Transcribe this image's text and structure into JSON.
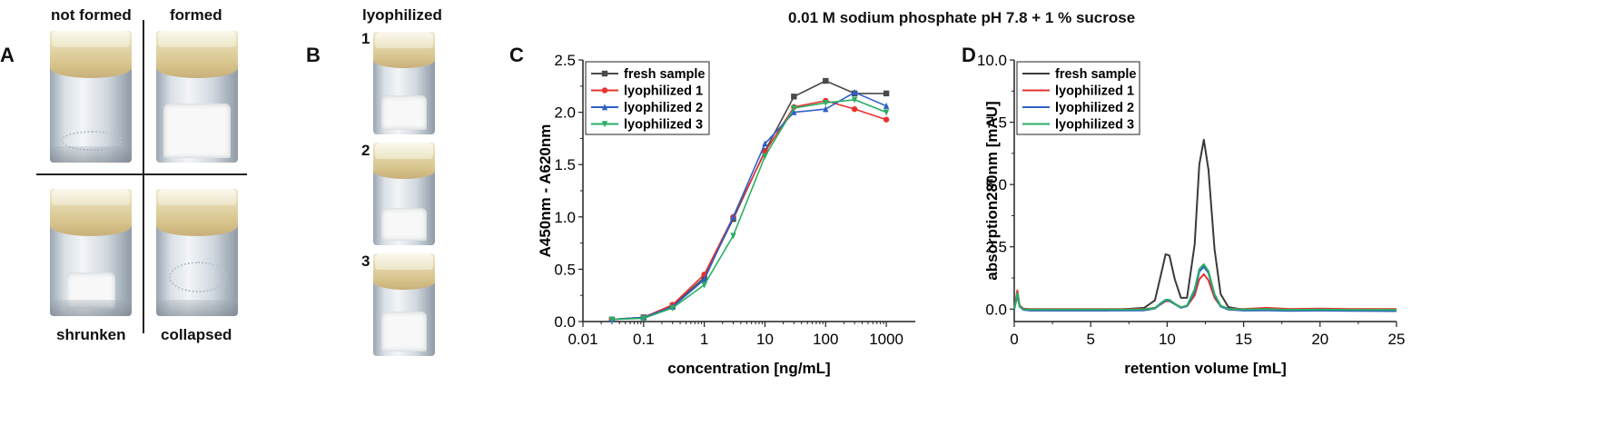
{
  "figure_title": "0.01 M sodium phosphate pH 7.8 + 1 % sucrose",
  "panel_a": {
    "letter": "A",
    "labels": {
      "top_left": "not formed",
      "top_right": "formed",
      "bottom_left": "shrunken",
      "bottom_right": "collapsed"
    }
  },
  "panel_b": {
    "letter": "B",
    "title": "lyophilized",
    "items": [
      "1",
      "2",
      "3"
    ]
  },
  "chart_data": [
    {
      "panel": "C",
      "type": "line",
      "xscale": "log",
      "xlabel": "concentration [ng/mL]",
      "ylabel": "A450nm - A620nm",
      "xlim": [
        0.01,
        3000
      ],
      "ylim": [
        0,
        2.5
      ],
      "xticks": [
        "0.01",
        "0.1",
        "1",
        "10",
        "100",
        "1000"
      ],
      "yticks": [
        "0.0",
        "0.5",
        "1.0",
        "1.5",
        "2.0",
        "2.5"
      ],
      "legend_position": "top-left",
      "x": [
        0.03,
        0.1,
        0.3,
        1,
        3,
        10,
        30,
        100,
        300,
        1000
      ],
      "series": [
        {
          "name": "fresh sample",
          "color": "#4a4a4a",
          "marker": "square",
          "values": [
            0.02,
            0.04,
            0.15,
            0.42,
            0.98,
            1.63,
            2.15,
            2.3,
            2.18,
            2.18
          ]
        },
        {
          "name": "lyophilized 1",
          "color": "#e8322e",
          "marker": "circle",
          "values": [
            0.02,
            0.04,
            0.16,
            0.45,
            1.0,
            1.62,
            2.05,
            2.11,
            2.03,
            1.93
          ]
        },
        {
          "name": "lyophilized 2",
          "color": "#2f60c8",
          "marker": "triangle-up",
          "values": [
            0.02,
            0.04,
            0.14,
            0.4,
            1.0,
            1.7,
            2.0,
            2.03,
            2.19,
            2.06
          ]
        },
        {
          "name": "lyophilized 3",
          "color": "#2aae64",
          "marker": "triangle-down",
          "values": [
            0.02,
            0.03,
            0.13,
            0.35,
            0.82,
            1.58,
            2.04,
            2.09,
            2.12,
            2.0
          ]
        }
      ]
    },
    {
      "panel": "D",
      "type": "line",
      "xlabel": "retention volume [mL]",
      "ylabel": "absorption280nm [mAU]",
      "xlim": [
        0,
        25
      ],
      "ylim": [
        -0.5,
        10
      ],
      "xticks": [
        "0",
        "5",
        "10",
        "15",
        "20",
        "25"
      ],
      "yticks": [
        "0.0",
        "2.5",
        "5.0",
        "7.5",
        "10.0"
      ],
      "legend_position": "top-left",
      "x": [
        0,
        0.2,
        0.35,
        0.6,
        1,
        3,
        6,
        8.5,
        9.2,
        9.6,
        9.9,
        10.15,
        10.5,
        10.9,
        11.3,
        11.8,
        12.1,
        12.4,
        12.7,
        13.1,
        13.5,
        14,
        15,
        16.5,
        18,
        20,
        22,
        25
      ],
      "series": [
        {
          "name": "fresh sample",
          "color": "#3a3a3a",
          "values": [
            0,
            0.55,
            0.12,
            0.0,
            -0.05,
            -0.05,
            -0.05,
            0.05,
            0.35,
            1.4,
            2.2,
            2.15,
            1.2,
            0.45,
            0.45,
            2.6,
            5.8,
            6.8,
            5.6,
            2.4,
            0.6,
            0.08,
            -0.02,
            0.0,
            -0.05,
            -0.05,
            -0.05,
            -0.08
          ]
        },
        {
          "name": "lyophilized 1",
          "color": "#e8322e",
          "values": [
            0,
            0.75,
            0.15,
            0.02,
            0.0,
            0.0,
            0.0,
            0.0,
            0.05,
            0.2,
            0.32,
            0.32,
            0.2,
            0.08,
            0.12,
            0.55,
            1.2,
            1.4,
            1.15,
            0.45,
            0.12,
            0.02,
            0.0,
            0.05,
            0.0,
            0.02,
            0.0,
            0.0
          ]
        },
        {
          "name": "lyophilized 2",
          "color": "#2f60c8",
          "values": [
            0,
            0.6,
            0.1,
            -0.03,
            -0.05,
            -0.06,
            -0.06,
            -0.05,
            0.02,
            0.22,
            0.35,
            0.34,
            0.2,
            0.05,
            0.12,
            0.7,
            1.5,
            1.7,
            1.45,
            0.55,
            0.1,
            -0.02,
            -0.06,
            -0.05,
            -0.07,
            -0.06,
            -0.07,
            -0.08
          ]
        },
        {
          "name": "lyophilized 3",
          "color": "#2aae64",
          "values": [
            0,
            0.65,
            0.12,
            0.0,
            -0.02,
            -0.02,
            -0.02,
            -0.01,
            0.04,
            0.25,
            0.38,
            0.37,
            0.22,
            0.07,
            0.14,
            0.8,
            1.6,
            1.8,
            1.52,
            0.6,
            0.14,
            0.01,
            -0.02,
            0.0,
            -0.03,
            -0.02,
            -0.03,
            -0.03
          ]
        }
      ]
    }
  ]
}
